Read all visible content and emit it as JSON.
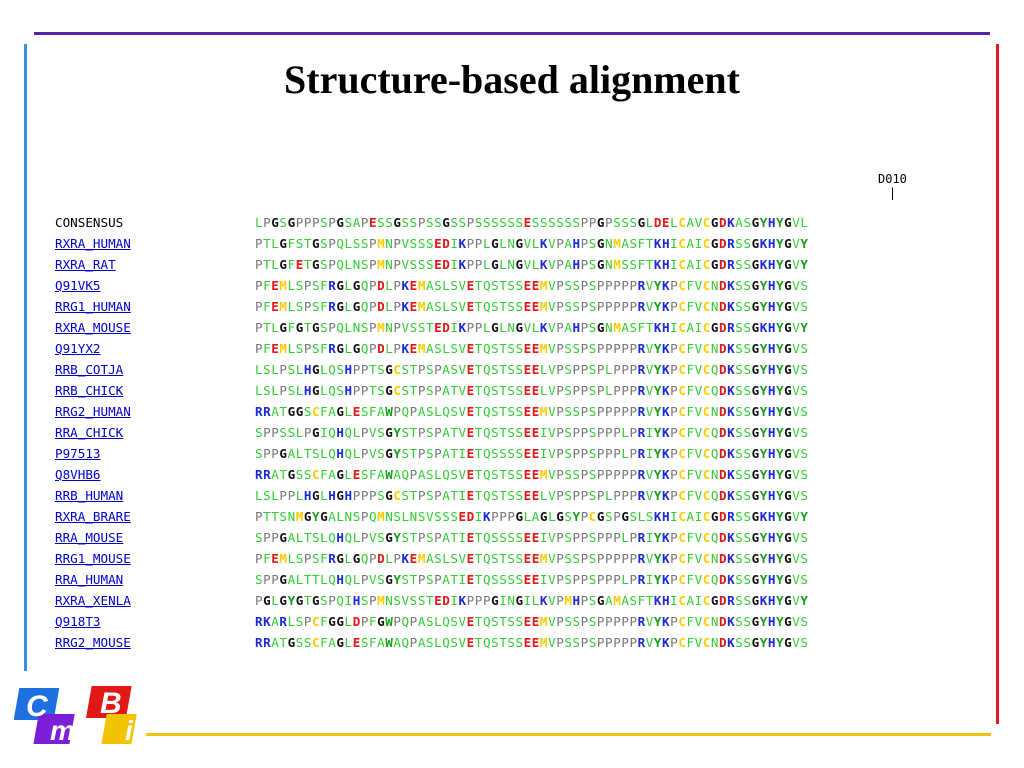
{
  "slide": {
    "title": "Structure-based alignment"
  },
  "marker": {
    "label": "D010",
    "tick": "|"
  },
  "logo": {
    "letters": [
      "C",
      "m",
      "B",
      "i"
    ],
    "colors": [
      "#1f6fe0",
      "#7a1fd6",
      "#e01818",
      "#f2c400"
    ]
  },
  "alignment": {
    "rows": [
      {
        "name": "CONSENSUS",
        "link": false,
        "seq": "LPGSGPPPSPGSAPESSGSSPSSGSSPSSSSSSESSSSSSPPGPSSSGLDELCAVCGDKASGYHYGVL"
      },
      {
        "name": "RXRA_HUMAN",
        "link": true,
        "seq": "PTLGFSTGSPQLSSPMNPVSSSEDIKPPLGLNGVLKVPAHPSGNMASFTKHICAICGDRSSGKHYGVY"
      },
      {
        "name": "RXRA_RAT",
        "link": true,
        "seq": "PTLGFETGSPQLNSPMNPVSSSEDIKPPLGLNGVLKVPAHPSGNMSSFTKHICAICGDRSSGKHYGVY"
      },
      {
        "name": "Q91VK5",
        "link": true,
        "seq": "PFEMLSPSFRGLGQPDLPKEMASLSVETQSTSSEEMVPSSPSPPPPPRVYKPCFVCNDKSSGYHYGVS"
      },
      {
        "name": "RRG1_HUMAN",
        "link": true,
        "seq": "PFEMLSPSFRGLGQPDLPKEMASLSVETQSTSSEEMVPSSPSPPPPPRVYKPCFVCNDKSSGYHYGVS"
      },
      {
        "name": "RXRA_MOUSE",
        "link": true,
        "seq": "PTLGFGTGSPQLNSPMNPVSSTEDIKPPLGLNGVLKVPAHPSGNMASFTKHICAICGDRSSGKHYGVY"
      },
      {
        "name": "Q91YX2",
        "link": true,
        "seq": "PFEMLSPSFRGLGQPDLPKEMASLSVETQSTSSEEMVPSSPSPPPPPRVYKPCFVCNDKSSGYHYGVS"
      },
      {
        "name": "RRB_COTJA",
        "link": true,
        "seq": "LSLPSLHGLQSHPPTSGCSTPSPASVETQSTSSEELVPSPPSPLPPPRVYKPCFVCQDKSSGYHYGVS"
      },
      {
        "name": "RRB_CHICK",
        "link": true,
        "seq": "LSLPSLHGLQSHPPTSGCSTPSPATVETQSTSSEELVPSPPSPLPPPRVYKPCFVCQDKSSGYHYGVS"
      },
      {
        "name": "RRG2_HUMAN",
        "link": true,
        "seq": "RRATGGSCFAGLESFAWPQPASLQSVETQSTSSEEMVPSSPSPPPPPRVYKPCFVCNDKSSGYHYGVS"
      },
      {
        "name": "RRA_CHICK",
        "link": true,
        "seq": "SPPSSLPGIQHQLPVSGYSTPSPATVETQSTSSEEIVPSPPSPPPLPRIYKPCFVCQDKSSGYHYGVS"
      },
      {
        "name": "P97513",
        "link": true,
        "seq": "SPPGALTSLQHQLPVSGYSTPSPATIETQSSSSEEIVPSPPSPPPLPRIYKPCFVCQDKSSGYHYGVS"
      },
      {
        "name": "Q8VHB6",
        "link": true,
        "seq": "RRATGSSCFAGLESFAWAQPASLQSVETQSTSSEEMVPSSPSPPPPPRVYKPCFVCNDKSSGYHYGVS"
      },
      {
        "name": "RRB_HUMAN",
        "link": true,
        "seq": "LSLPPLHGLHGHPPPSGCSTPSPATIETQSTSSEELVPSPPSPLPPPRVYKPCFVCQDKSSGYHYGVS"
      },
      {
        "name": "RXRA_BRARE",
        "link": true,
        "seq": "PTTSNMGYGALNSPQMNSLNSVSSSEDIKPPPGLAGLGSYPCGSPGSLSKHICAICGDRSSGKHYGVY"
      },
      {
        "name": "RRA_MOUSE",
        "link": true,
        "seq": "SPPGALTSLQHQLPVSGYSTPSPATIETQSSSSEEIVPSPPSPPPLPRIYKPCFVCQDKSSGYHYGVS"
      },
      {
        "name": "RRG1_MOUSE",
        "link": true,
        "seq": "PFEMLSPSFRGLGQPDLPKEMASLSVETQSTSSEEMVPSSPSPPPPPRVYKPCFVCNDKSSGYHYGVS"
      },
      {
        "name": "RRA_HUMAN",
        "link": true,
        "seq": "SPPGALTTLQHQLPVSGYSTPSPATIETQSSSSEEIVPSPPSPPPLPRIYKPCFVCQDKSSGYHYGVS"
      },
      {
        "name": "RXRA_XENLA",
        "link": true,
        "seq": "PGLGYGTGSPQIHSPMNSVSSTEDIKPPPGINGILKVPMHPSGAMASFTKHICAICGDRSSGKHYGVY"
      },
      {
        "name": "Q918T3",
        "link": true,
        "seq": "RKARLSPCFGGLDPFGWPQPASLQSVETQSTSSEEMVPSSPSPPPPPRVYKPCFVCNDKSSGYHYGVS"
      },
      {
        "name": "RRG2_MOUSE",
        "link": true,
        "seq": "RRATGSSCFAGLESFAWAQPASLQSVETQSTSSEEMVPSSPSPPPPPRVYKPCFVCNDKSSGYHYGVS"
      }
    ]
  },
  "residue_colors": {
    "hydrophobic": "#33cc33",
    "small": "#777777",
    "acidic": "#e01818",
    "basic": "#1a2ad8",
    "cys_met": "#ffcc00",
    "polar_green": "#33cc33",
    "aromatic": "#1a9e1a",
    "bold_default": "#111111"
  }
}
